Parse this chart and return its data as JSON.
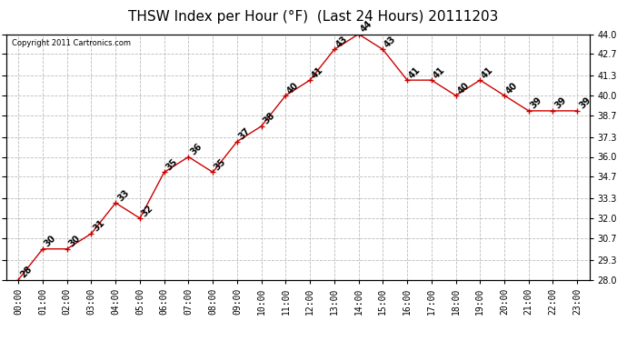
{
  "title": "THSW Index per Hour (°F)  (Last 24 Hours) 20111203",
  "copyright": "Copyright 2011 Cartronics.com",
  "hours": [
    "00:00",
    "01:00",
    "02:00",
    "03:00",
    "04:00",
    "05:00",
    "06:00",
    "07:00",
    "08:00",
    "09:00",
    "10:00",
    "11:00",
    "12:00",
    "13:00",
    "14:00",
    "15:00",
    "16:00",
    "17:00",
    "18:00",
    "19:00",
    "20:00",
    "21:00",
    "22:00",
    "23:00"
  ],
  "values": [
    28,
    30,
    30,
    31,
    33,
    32,
    35,
    36,
    35,
    37,
    38,
    40,
    41,
    43,
    44,
    43,
    41,
    41,
    40,
    41,
    40,
    39,
    39,
    39
  ],
  "line_color": "#cc0000",
  "marker": "+",
  "marker_color": "#cc0000",
  "bg_color": "#ffffff",
  "plot_bg_color": "#ffffff",
  "grid_color": "#bbbbbb",
  "label_color": "#000000",
  "ylim": [
    28.0,
    44.0
  ],
  "yticks": [
    28.0,
    29.3,
    30.7,
    32.0,
    33.3,
    34.7,
    36.0,
    37.3,
    38.7,
    40.0,
    41.3,
    42.7,
    44.0
  ],
  "title_fontsize": 11,
  "label_fontsize": 7,
  "annotation_fontsize": 7
}
